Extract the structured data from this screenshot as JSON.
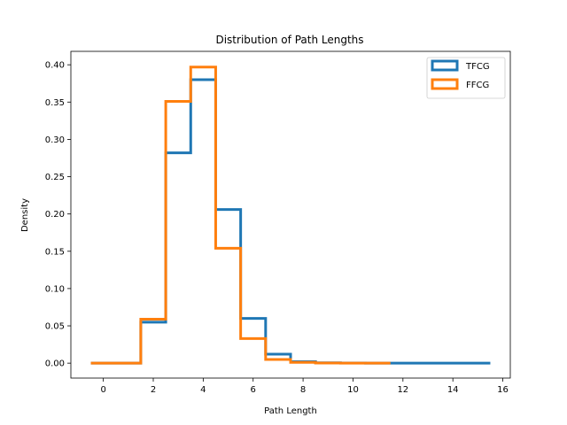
{
  "chart_data": {
    "type": "line",
    "title": "Distribution of Path Lengths",
    "xlabel": "Path Length",
    "ylabel": "Density",
    "xlim": [
      -1.3,
      16.3
    ],
    "ylim": [
      -0.02,
      0.418
    ],
    "grid": false,
    "legend_position": "top-right",
    "x_ticks": [
      "0",
      "2",
      "4",
      "6",
      "8",
      "10",
      "12",
      "14",
      "16"
    ],
    "y_ticks": [
      "0.00",
      "0.05",
      "0.10",
      "0.15",
      "0.20",
      "0.25",
      "0.30",
      "0.35",
      "0.40"
    ],
    "series": [
      {
        "name": "TFCG",
        "color": "#1f77b4",
        "bin_edges": [
          -0.5,
          0.5,
          1.5,
          2.5,
          3.5,
          4.5,
          5.5,
          6.5,
          7.5,
          8.5,
          9.5,
          10.5,
          11.5,
          12.5,
          13.5,
          14.5,
          15.5
        ],
        "values": [
          0.0,
          0.0,
          0.055,
          0.282,
          0.38,
          0.206,
          0.06,
          0.012,
          0.002,
          0.0005,
          0.0002,
          0.0001,
          0.0001,
          0.0,
          0.0,
          0.0
        ]
      },
      {
        "name": "FFCG",
        "color": "#ff7f0e",
        "bin_edges": [
          -0.5,
          0.5,
          1.5,
          2.5,
          3.5,
          4.5,
          5.5,
          6.5,
          7.5,
          8.5,
          9.5,
          10.5,
          11.5
        ],
        "values": [
          0.0,
          0.0,
          0.059,
          0.351,
          0.397,
          0.154,
          0.033,
          0.005,
          0.001,
          0.0002,
          0.0001,
          0.0001
        ]
      }
    ]
  }
}
